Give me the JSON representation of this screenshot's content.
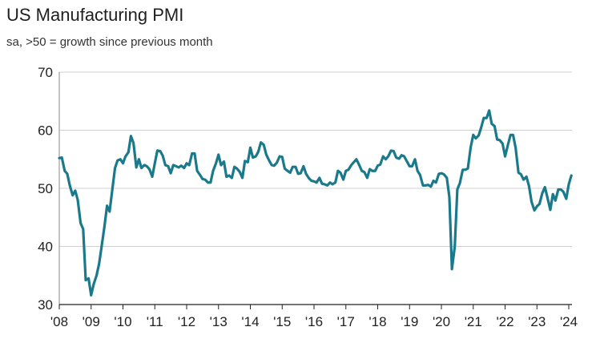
{
  "chart_data": {
    "type": "line",
    "title": "US Manufacturing PMI",
    "subtitle": "sa, >50 = growth since previous month",
    "xlabel": "",
    "ylabel": "",
    "ylim": [
      30,
      70
    ],
    "xlim": [
      2008.0,
      2024.1
    ],
    "yticks": [
      30,
      40,
      50,
      60,
      70
    ],
    "xticks": [
      {
        "label": "'08",
        "value": 2008
      },
      {
        "label": "'09",
        "value": 2009
      },
      {
        "label": "'10",
        "value": 2010
      },
      {
        "label": "'11",
        "value": 2011
      },
      {
        "label": "'12",
        "value": 2012
      },
      {
        "label": "'13",
        "value": 2013
      },
      {
        "label": "'14",
        "value": 2014
      },
      {
        "label": "'15",
        "value": 2015
      },
      {
        "label": "'16",
        "value": 2016
      },
      {
        "label": "'17",
        "value": 2017
      },
      {
        "label": "'18",
        "value": 2018
      },
      {
        "label": "'19",
        "value": 2019
      },
      {
        "label": "'20",
        "value": 2020
      },
      {
        "label": "'21",
        "value": 2021
      },
      {
        "label": "'22",
        "value": 2022
      },
      {
        "label": "'23",
        "value": 2023
      },
      {
        "label": "'24",
        "value": 2024
      }
    ],
    "grid": "horizontal",
    "series": [
      {
        "name": "US Manufacturing PMI",
        "color": "#1a7a8c",
        "x": [
          2008.0,
          2008.08,
          2008.17,
          2008.25,
          2008.33,
          2008.42,
          2008.5,
          2008.58,
          2008.67,
          2008.75,
          2008.83,
          2008.92,
          2009.0,
          2009.08,
          2009.17,
          2009.25,
          2009.33,
          2009.42,
          2009.5,
          2009.58,
          2009.67,
          2009.75,
          2009.83,
          2009.92,
          2010.0,
          2010.08,
          2010.17,
          2010.25,
          2010.33,
          2010.42,
          2010.5,
          2010.58,
          2010.67,
          2010.75,
          2010.83,
          2010.92,
          2011.0,
          2011.08,
          2011.17,
          2011.25,
          2011.33,
          2011.42,
          2011.5,
          2011.58,
          2011.67,
          2011.75,
          2011.83,
          2011.92,
          2012.0,
          2012.08,
          2012.17,
          2012.25,
          2012.33,
          2012.42,
          2012.5,
          2012.58,
          2012.67,
          2012.75,
          2012.83,
          2012.92,
          2013.0,
          2013.08,
          2013.17,
          2013.25,
          2013.33,
          2013.42,
          2013.5,
          2013.58,
          2013.67,
          2013.75,
          2013.83,
          2013.92,
          2014.0,
          2014.08,
          2014.17,
          2014.25,
          2014.33,
          2014.42,
          2014.5,
          2014.58,
          2014.67,
          2014.75,
          2014.83,
          2014.92,
          2015.0,
          2015.08,
          2015.17,
          2015.25,
          2015.33,
          2015.42,
          2015.5,
          2015.58,
          2015.67,
          2015.75,
          2015.83,
          2015.92,
          2016.0,
          2016.08,
          2016.17,
          2016.25,
          2016.33,
          2016.42,
          2016.5,
          2016.58,
          2016.67,
          2016.75,
          2016.83,
          2016.92,
          2017.0,
          2017.08,
          2017.17,
          2017.25,
          2017.33,
          2017.42,
          2017.5,
          2017.58,
          2017.67,
          2017.75,
          2017.83,
          2017.92,
          2018.0,
          2018.08,
          2018.17,
          2018.25,
          2018.33,
          2018.42,
          2018.5,
          2018.58,
          2018.67,
          2018.75,
          2018.83,
          2018.92,
          2019.0,
          2019.08,
          2019.17,
          2019.25,
          2019.33,
          2019.42,
          2019.5,
          2019.58,
          2019.67,
          2019.75,
          2019.83,
          2019.92,
          2020.0,
          2020.08,
          2020.17,
          2020.25,
          2020.33,
          2020.42,
          2020.5,
          2020.58,
          2020.67,
          2020.75,
          2020.83,
          2020.92,
          2021.0,
          2021.08,
          2021.17,
          2021.25,
          2021.33,
          2021.42,
          2021.5,
          2021.58,
          2021.67,
          2021.75,
          2021.83,
          2021.92,
          2022.0,
          2022.08,
          2022.17,
          2022.25,
          2022.33,
          2022.42,
          2022.5,
          2022.58,
          2022.67,
          2022.75,
          2022.83,
          2022.92,
          2023.0,
          2023.08,
          2023.17,
          2023.25,
          2023.33,
          2023.42,
          2023.5,
          2023.58,
          2023.67,
          2023.75,
          2023.83,
          2023.92,
          2024.0,
          2024.08
        ],
        "values": [
          55.2,
          55.3,
          53.0,
          52.5,
          50.5,
          48.8,
          49.6,
          48.0,
          44.0,
          43.0,
          34.2,
          34.5,
          31.6,
          33.5,
          35.0,
          37.0,
          40.0,
          43.5,
          47.0,
          46.0,
          50.0,
          53.5,
          54.8,
          55.0,
          54.3,
          55.5,
          56.2,
          59.0,
          57.8,
          53.6,
          55.0,
          53.5,
          54.0,
          53.8,
          53.3,
          52.0,
          54.3,
          56.5,
          56.4,
          55.6,
          54.0,
          53.8,
          52.6,
          54.0,
          53.8,
          53.6,
          53.9,
          53.5,
          54.3,
          54.0,
          56.0,
          56.0,
          53.0,
          52.3,
          51.6,
          51.5,
          51.0,
          51.0,
          53.0,
          54.3,
          55.8,
          54.0,
          54.6,
          52.0,
          52.2,
          51.8,
          53.7,
          53.4,
          52.8,
          51.8,
          54.7,
          54.5,
          57.0,
          55.3,
          55.5,
          56.3,
          57.9,
          57.5,
          55.8,
          54.9,
          54.0,
          53.9,
          54.4,
          55.5,
          55.4,
          53.4,
          53.0,
          52.7,
          53.7,
          53.7,
          52.5,
          52.6,
          53.8,
          52.5,
          51.8,
          51.3,
          51.2,
          51.0,
          51.8,
          50.8,
          50.7,
          50.5,
          51.0,
          50.7,
          51.0,
          53.0,
          52.7,
          51.5,
          53.0,
          53.2,
          54.0,
          54.5,
          55.0,
          54.0,
          53.0,
          52.8,
          51.8,
          53.3,
          53.0,
          53.0,
          53.9,
          54.1,
          55.5,
          55.0,
          55.5,
          56.5,
          56.4,
          55.3,
          55.1,
          55.7,
          55.5,
          54.6,
          53.8,
          53.8,
          55.0,
          53.0,
          52.3,
          50.5,
          50.5,
          50.6,
          50.3,
          51.3,
          51.0,
          52.5,
          52.6,
          52.4,
          51.8,
          48.5,
          36.1,
          40.0,
          49.8,
          50.9,
          53.2,
          53.2,
          53.4,
          57.1,
          59.2,
          58.6,
          59.1,
          60.5,
          62.1,
          62.1,
          63.4,
          61.1,
          60.7,
          58.4,
          58.3,
          57.7,
          55.5,
          57.3,
          59.2,
          59.2,
          57.0,
          52.7,
          52.4,
          51.5,
          52.0,
          50.4,
          47.7,
          46.2,
          46.9,
          47.3,
          49.2,
          50.2,
          48.4,
          46.3,
          49.0,
          47.9,
          49.8,
          49.8,
          49.4,
          48.2,
          50.7,
          52.2
        ]
      }
    ]
  }
}
